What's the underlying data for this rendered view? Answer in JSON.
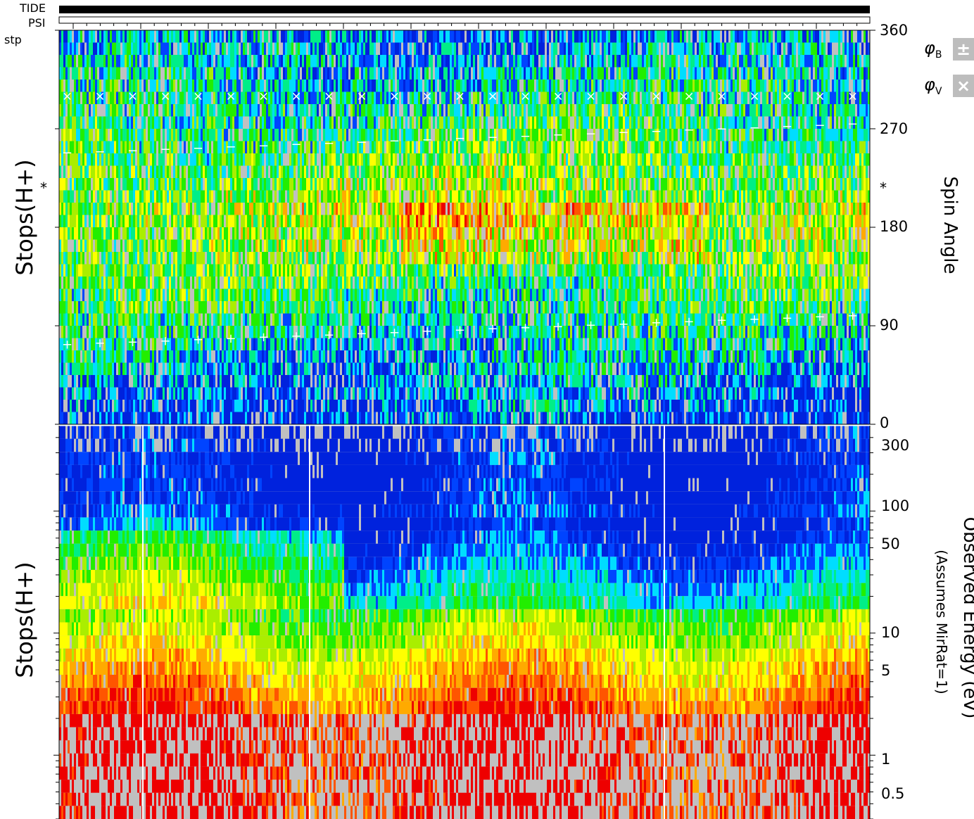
{
  "header": {
    "tide_label": "TIDE",
    "psi_label": "PSI",
    "stp_label": "stp"
  },
  "legend": {
    "phi_b_symbol": "φ",
    "phi_b_sub": "B",
    "phi_b_marker": "±",
    "phi_v_symbol": "φ",
    "phi_v_sub": "V",
    "phi_v_marker": "×"
  },
  "colors": {
    "background_gray": "#c0c0c0",
    "palette": [
      "#0022dd",
      "#0044ff",
      "#00ddff",
      "#00ee88",
      "#22ee00",
      "#aaee00",
      "#ffff00",
      "#ffaa00",
      "#ff5500",
      "#ee0000"
    ]
  },
  "chart_data": [
    {
      "type": "heatmap",
      "title": "",
      "left_label": "Stops(H+)",
      "ylabel": "Spin Angle",
      "y_axis_scale": "linear",
      "ylim": [
        0,
        360
      ],
      "ytick_labels": [
        "360",
        "270",
        "180",
        "90",
        "0"
      ],
      "y_ticks": [
        360,
        270,
        180,
        90,
        0
      ],
      "marker_labels": [
        "*",
        "*"
      ],
      "overlay_markers": {
        "phi_B": {
          "marker": "+ and −",
          "values_deg": [
            75,
            250
          ],
          "trend": "+ markers drift from ~73 to ~100 deg; − markers from ~248 to ~275 deg"
        },
        "phi_V": {
          "marker": "×",
          "value_deg": 300
        }
      },
      "colormap": "blue-cyan-green-yellow-red",
      "grid": false
    },
    {
      "type": "heatmap",
      "title": "",
      "left_label": "Stops(H+)",
      "ylabel": "Observed Energy (eV)",
      "ylabel2": "(Assumes MirRat=1)",
      "y_axis_scale": "log",
      "ylim": [
        0.3,
        500
      ],
      "ytick_labels": [
        "300",
        "100",
        "50",
        "10",
        "5",
        "1",
        "0.5"
      ],
      "y_ticks": [
        300,
        100,
        50,
        10,
        5,
        1,
        0.5
      ],
      "colormap": "blue-cyan-green-yellow-red",
      "grid": false
    }
  ]
}
